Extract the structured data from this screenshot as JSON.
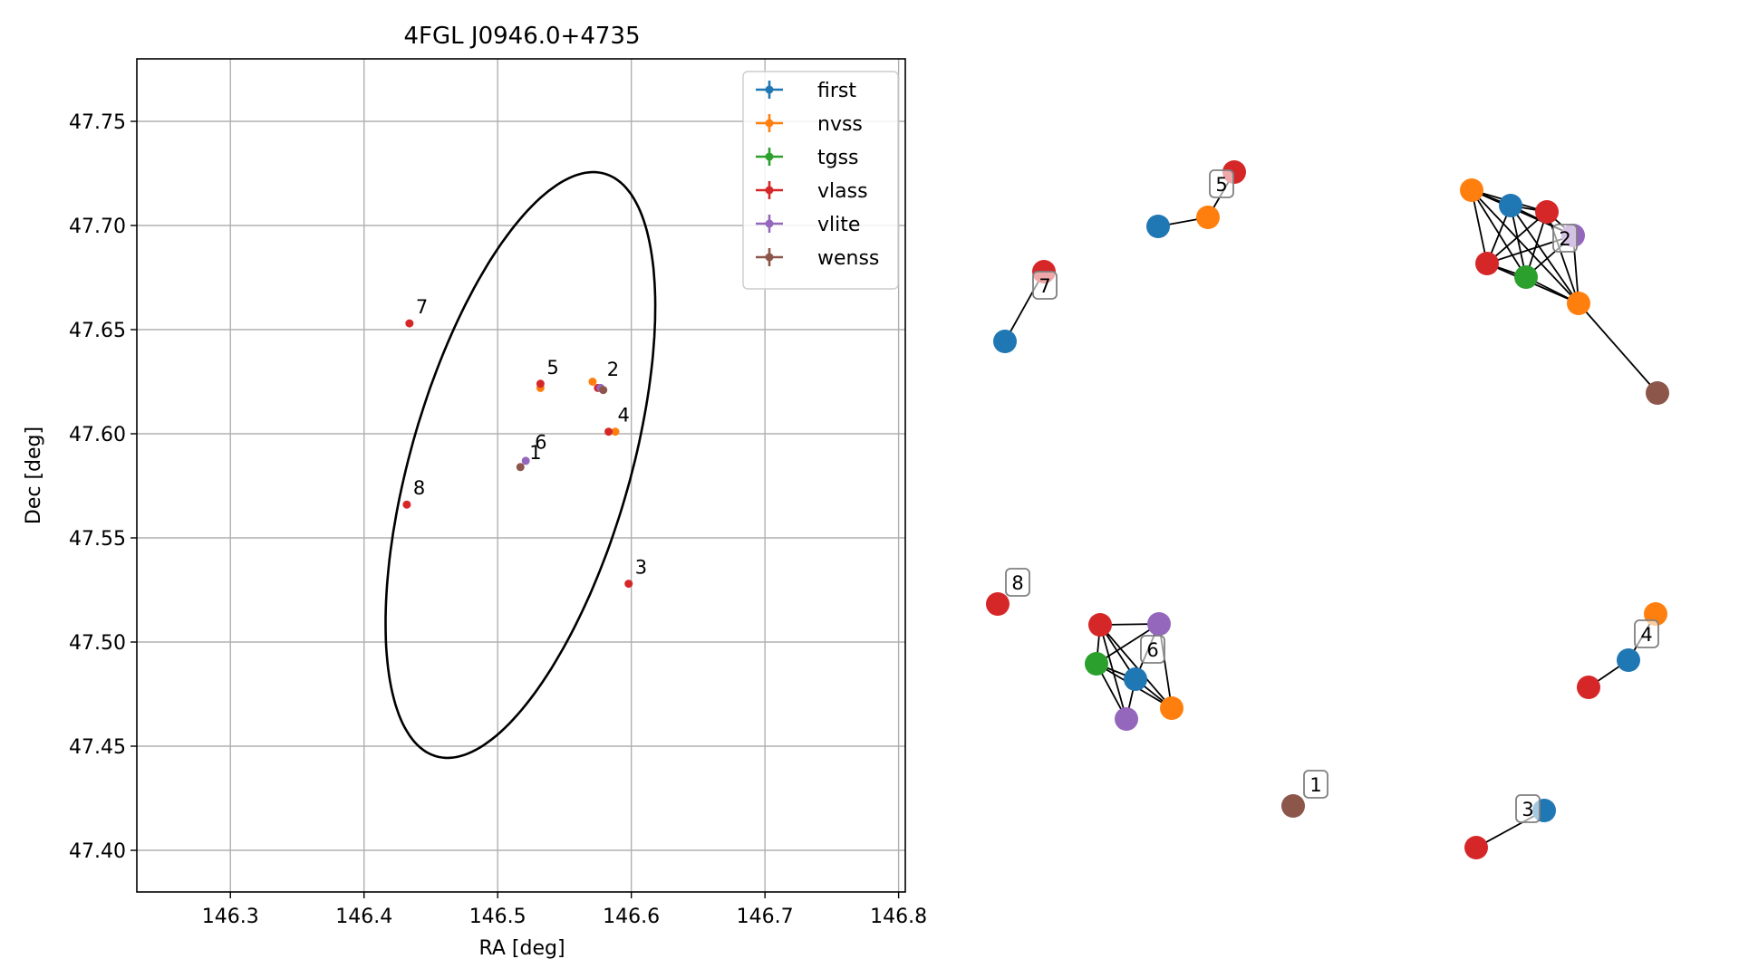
{
  "chart_data": [
    {
      "type": "scatter",
      "title": "4FGL J0946.0+4735",
      "xlabel": "RA [deg]",
      "ylabel": "Dec [deg]",
      "xlim": [
        146.23,
        146.805
      ],
      "ylim": [
        47.38,
        47.78
      ],
      "xticks": [
        146.3,
        146.4,
        146.5,
        146.6,
        146.7,
        146.8
      ],
      "xtick_labels": [
        "146.3",
        "146.4",
        "146.5",
        "146.6",
        "146.7",
        "146.8"
      ],
      "yticks": [
        47.4,
        47.45,
        47.5,
        47.55,
        47.6,
        47.65,
        47.7,
        47.75
      ],
      "ytick_labels": [
        "47.40",
        "47.45",
        "47.50",
        "47.55",
        "47.60",
        "47.65",
        "47.70",
        "47.75"
      ],
      "grid": true,
      "legend_position": "top-right",
      "colors": {
        "first": "#1f77b4",
        "nvss": "#ff7f0e",
        "tgss": "#2ca02c",
        "vlass": "#d62728",
        "vlite": "#9467bd",
        "wenss": "#8c564b"
      },
      "series": [
        {
          "name": "first",
          "points": []
        },
        {
          "name": "nvss",
          "points": [
            [
              146.571,
              47.625
            ],
            [
              146.532,
              47.622
            ],
            [
              146.588,
              47.601
            ]
          ]
        },
        {
          "name": "tgss",
          "points": []
        },
        {
          "name": "vlass",
          "points": [
            [
              146.434,
              47.653
            ],
            [
              146.532,
              47.624
            ],
            [
              146.583,
              47.601
            ],
            [
              146.432,
              47.566
            ],
            [
              146.598,
              47.528
            ],
            [
              146.575,
              47.622
            ]
          ]
        },
        {
          "name": "vlite",
          "points": [
            [
              146.577,
              47.622
            ],
            [
              146.521,
              47.587
            ]
          ]
        },
        {
          "name": "wenss",
          "points": [
            [
              146.579,
              47.621
            ],
            [
              146.517,
              47.584
            ]
          ]
        }
      ],
      "point_labels": [
        {
          "text": "7",
          "x": 146.434,
          "y": 47.653
        },
        {
          "text": "5",
          "x": 146.532,
          "y": 47.624
        },
        {
          "text": "2",
          "x": 146.577,
          "y": 47.623
        },
        {
          "text": "4",
          "x": 146.585,
          "y": 47.601
        },
        {
          "text": "6",
          "x": 146.523,
          "y": 47.588
        },
        {
          "text": "1",
          "x": 146.519,
          "y": 47.583
        },
        {
          "text": "8",
          "x": 146.432,
          "y": 47.566
        },
        {
          "text": "3",
          "x": 146.598,
          "y": 47.528
        }
      ],
      "ellipse": {
        "center": [
          146.517,
          47.585
        ],
        "semi_axis_a": 0.155,
        "semi_axis_b": 0.077,
        "angle_deg": 61
      }
    },
    {
      "type": "network",
      "labels": [
        "8",
        "6",
        "1",
        "3",
        "4",
        "7",
        "5",
        "2"
      ]
    }
  ]
}
